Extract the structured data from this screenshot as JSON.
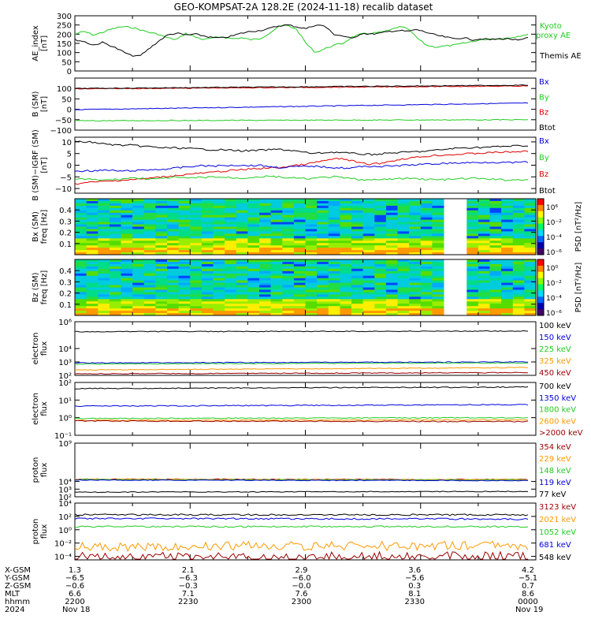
{
  "title": "GEO-KOMPSAT-2A 128.2E (2024-11-18) recalib dataset",
  "colors": {
    "black": "#000000",
    "red": "#e00000",
    "green": "#22cc22",
    "blue": "#0000dd",
    "orange": "#ff9900",
    "darkred": "#990000",
    "bright_green": "#22dd22"
  },
  "chart_data": [
    {
      "type": "line",
      "id": "ae",
      "ylabel": [
        "AE_index",
        "[nT]"
      ],
      "ylim": [
        0,
        300
      ],
      "yticks": [
        "0",
        "50",
        "100",
        "150",
        "200",
        "250",
        "300"
      ],
      "legend": [
        "Kyoto",
        "proxy AE",
        "Themis AE"
      ],
      "series": [
        {
          "name": "Kyoto proxy AE",
          "color": "green",
          "values": [
            200,
            215,
            195,
            210,
            228,
            240,
            238,
            225,
            210,
            200,
            180,
            170,
            205,
            185,
            170,
            180,
            185,
            175,
            180,
            170,
            175,
            205,
            240,
            248,
            225,
            150,
            100,
            120,
            140,
            150,
            185,
            200,
            205,
            210,
            220,
            240,
            230,
            180,
            140,
            130,
            135,
            140,
            150,
            160,
            170,
            175,
            175,
            180,
            190,
            200
          ]
        },
        {
          "name": "Themis AE",
          "color": "black",
          "values": [
            170,
            160,
            140,
            155,
            135,
            110,
            85,
            80,
            120,
            160,
            195,
            205,
            195,
            200,
            190,
            180,
            180,
            190,
            205,
            215,
            220,
            230,
            245,
            250,
            240,
            230,
            250,
            245,
            200,
            190,
            175,
            205,
            200,
            205,
            215,
            220,
            215,
            225,
            210,
            195,
            185,
            175,
            180,
            170,
            175,
            170,
            175,
            175,
            165,
            180
          ]
        }
      ]
    },
    {
      "type": "line",
      "id": "b_sm",
      "ylabel": [
        "B (SM)",
        "[nT]"
      ],
      "ylim": [
        -100,
        150
      ],
      "yticks": [
        "−100",
        "−50",
        "0",
        "50",
        "100"
      ],
      "legend": [
        "Bx",
        "By",
        "Bz",
        "Btot"
      ],
      "series": [
        {
          "name": "Bx",
          "color": "blue",
          "values": [
            -2,
            30
          ]
        },
        {
          "name": "By",
          "color": "green",
          "values": [
            -55,
            -50
          ]
        },
        {
          "name": "Bz",
          "color": "red",
          "values": [
            98,
            112
          ]
        },
        {
          "name": "Btot",
          "color": "black",
          "values": [
            100,
            116
          ]
        }
      ]
    },
    {
      "type": "line",
      "id": "b_igrf",
      "ylabel": [
        "B (SM)−IGRF (SM)",
        "[nT]"
      ],
      "ylim": [
        -12,
        12
      ],
      "yticks": [
        "−10",
        "−5",
        "0",
        "5",
        "10"
      ],
      "legend": [
        "Bx",
        "By",
        "Bz",
        "Btot"
      ],
      "series": [
        {
          "name": "Btot",
          "color": "black",
          "values": [
            10,
            10,
            9.8,
            9.2,
            8.8,
            8.5,
            8.6,
            8.2,
            8,
            7.6,
            7.4,
            7.4,
            7.2,
            7,
            6.8,
            6.6,
            6.6,
            6.4,
            6.2,
            6.2,
            6.4,
            6.6,
            6.8,
            6.5,
            6,
            5.4,
            5,
            5.4,
            5.6,
            5.4,
            5,
            4.8,
            4.6,
            4.8,
            5.2,
            5.4,
            5.6,
            5.8,
            6,
            6.4,
            6.8,
            7.2,
            7.4,
            7.6,
            7.6,
            7.8,
            8,
            8.2,
            8.3,
            8.4
          ]
        },
        {
          "name": "Bz",
          "color": "red",
          "values": [
            -8,
            -7.6,
            -7.2,
            -7,
            -6.8,
            -6.4,
            -6.2,
            -6,
            -5.6,
            -5.2,
            -4.8,
            -4.4,
            -4,
            -3.6,
            -3.4,
            -3,
            -2.6,
            -2.2,
            -2,
            -1.6,
            -1.4,
            -1.2,
            -1,
            -0.6,
            0,
            0.4,
            1.2,
            2,
            2.6,
            2.8,
            1.8,
            0.8,
            0.4,
            0.8,
            1.6,
            2.4,
            3,
            3.4,
            3.8,
            4.2,
            4.4,
            4.6,
            4.8,
            5,
            5.2,
            5.4,
            5.6,
            5.6,
            5.8,
            6
          ]
        },
        {
          "name": "Bx",
          "color": "blue",
          "values": [
            -2.6,
            -2.4,
            -2.4,
            -2.2,
            -2.2,
            -2.6,
            -2.4,
            -2.2,
            -2,
            -1.8,
            -1.6,
            -1.2,
            -0.8,
            -0.4,
            -0.2,
            -0.4,
            -0.2,
            0,
            0,
            -0.2,
            0,
            -0.6,
            -1,
            -0.8,
            -0.6,
            -0.6,
            -0.4,
            -0.8,
            -1,
            -1.2,
            -1.2,
            -0.6,
            -0.4,
            -0.6,
            -0.4,
            -0.2,
            0,
            0.2,
            0.4,
            0.6,
            0.8,
            0.9,
            1,
            1.1,
            1.2,
            1.3,
            1.2,
            1.1,
            1.2,
            1.3
          ]
        },
        {
          "name": "By",
          "color": "green",
          "values": [
            -5.8,
            -6,
            -6.2,
            -6.4,
            -6.2,
            -6,
            -5.4,
            -5.6,
            -5.8,
            -6,
            -5.4,
            -5.2,
            -5.6,
            -5.4,
            -5.2,
            -5,
            -5.2,
            -5.4,
            -5.6,
            -5.2,
            -5,
            -4.8,
            -5,
            -5.4,
            -5.6,
            -5.8,
            -5.6,
            -5.2,
            -5,
            -5.4,
            -5.8,
            -6.2,
            -6.4,
            -6.2,
            -6,
            -5.8,
            -5.6,
            -5.8,
            -6,
            -6.2,
            -6.2,
            -6,
            -5.8,
            -5.6,
            -5.8,
            -6,
            -6.2,
            -6.4,
            -6.2,
            -6
          ]
        }
      ]
    },
    {
      "type": "heatmap",
      "id": "bx_spec",
      "ylabel": [
        "Bx (SM)",
        "freq [Hz]"
      ],
      "ylim": [
        0,
        0.5
      ],
      "yticks": [
        "0.1",
        "0.2",
        "0.3",
        "0.4"
      ],
      "colorbar": {
        "label": "PSD [nT²/Hz]",
        "ticks": [
          "10⁶",
          "10⁻²",
          "10⁻⁴",
          "10⁻⁶"
        ]
      },
      "gap": [
        0.818,
        0.846
      ]
    },
    {
      "type": "heatmap",
      "id": "bz_spec",
      "ylabel": [
        "Bz (SM)",
        "freq [Hz]"
      ],
      "ylim": [
        0,
        0.5
      ],
      "yticks": [
        "0.1",
        "0.2",
        "0.3",
        "0.4"
      ],
      "colorbar": {
        "label": "PSD [nT²/Hz]",
        "ticks": [
          "10⁰",
          "10⁻²",
          "10⁻⁴",
          "10⁻⁶"
        ]
      },
      "gap": [
        0.818,
        0.846
      ]
    },
    {
      "type": "line",
      "id": "e_low",
      "ylabel": [
        "electron",
        "flux"
      ],
      "log": true,
      "ylim": [
        100,
        1000000
      ],
      "yticks": [
        "10⁶",
        "10⁴",
        "10³",
        "10²"
      ],
      "legend": [
        "100 keV",
        "150 keV",
        "225 keV",
        "325 keV",
        "450 keV"
      ],
      "series": [
        {
          "name": "100 keV",
          "color": "black",
          "values": [
            180000,
            200000
          ]
        },
        {
          "name": "150 keV",
          "color": "blue",
          "values": [
            850,
            1000
          ]
        },
        {
          "name": "225 keV",
          "color": "green",
          "values": [
            700,
            850
          ]
        },
        {
          "name": "325 keV",
          "color": "orange",
          "values": [
            250,
            380
          ]
        },
        {
          "name": "450 keV",
          "color": "darkred",
          "values": [
            130,
            160
          ]
        }
      ]
    },
    {
      "type": "line",
      "id": "e_high",
      "ylabel": [
        "electron",
        "flux"
      ],
      "log": true,
      "ylim": [
        0.1,
        100
      ],
      "yticks": [
        "10²",
        "10¹",
        "10⁰",
        "10⁻¹"
      ],
      "legend": [
        "700 keV",
        "1350 keV",
        "1800 keV",
        "2600 keV",
        ">2000 keV"
      ],
      "series": [
        {
          "name": "700 keV",
          "color": "black",
          "values": [
            45,
            55
          ]
        },
        {
          "name": "1350 keV",
          "color": "blue",
          "values": [
            4.5,
            5.5
          ]
        },
        {
          "name": "1800 keV",
          "color": "green",
          "values": [
            0.9,
            1.0
          ]
        },
        {
          "name": "2600 keV",
          "color": "orange",
          "values": [
            0.7,
            0.75
          ]
        },
        {
          "name": ">2000 keV",
          "color": "darkred",
          "values": [
            0.65,
            0.6
          ]
        }
      ]
    },
    {
      "type": "line",
      "id": "p_low",
      "ylabel": [
        "proton",
        "flux"
      ],
      "log": true,
      "ylim": [
        100,
        1000000000
      ],
      "yticks": [
        "10⁹",
        "10⁴",
        "10³",
        "10²"
      ],
      "legend": [
        "354 keV",
        "229 keV",
        "148 keV",
        "119 keV",
        "77 keV"
      ],
      "series": [
        {
          "name": "354 keV",
          "color": "darkred",
          "values": [
            20000,
            18000
          ]
        },
        {
          "name": "229 keV",
          "color": "orange",
          "values": [
            19000,
            17000
          ]
        },
        {
          "name": "148 keV",
          "color": "green",
          "values": [
            17000,
            15000
          ]
        },
        {
          "name": "119 keV",
          "color": "blue",
          "values": [
            15000,
            13000
          ]
        },
        {
          "name": "77 keV",
          "color": "black",
          "values": [
            400,
            500
          ]
        }
      ]
    },
    {
      "type": "line",
      "id": "p_high",
      "ylabel": [
        "proton",
        "flux"
      ],
      "log": true,
      "ylim": [
        3e-05,
        10000
      ],
      "yticks": [
        "10⁴",
        "10²",
        "10⁰",
        "10⁻²",
        "10⁻⁴"
      ],
      "legend": [
        "3123 keV",
        "2021 keV",
        "1052 keV",
        "681 keV",
        "548 keV"
      ],
      "series": [
        {
          "name": "3123 keV",
          "color": "darkred",
          "values": [
            8e-05,
            0.0001
          ]
        },
        {
          "name": "2021 keV",
          "color": "orange",
          "values": [
            0.003,
            0.004
          ]
        },
        {
          "name": "1052 keV",
          "color": "green",
          "values": [
            3,
            3
          ]
        },
        {
          "name": "681 keV",
          "color": "blue",
          "values": [
            50,
            40
          ]
        },
        {
          "name": "548 keV",
          "color": "black",
          "values": [
            180,
            170
          ]
        }
      ]
    }
  ],
  "ephemeris": {
    "row_labels": [
      "X-GSM",
      "Y-GSM",
      "Z-GSM",
      "MLT",
      "hhmm",
      "2024"
    ],
    "columns": [
      [
        "1.3",
        "−6.5",
        "−0.6",
        "6.6",
        "2200",
        "Nov 18"
      ],
      [
        "2.1",
        "−6.3",
        "−0.3",
        "7.1",
        "2230",
        ""
      ],
      [
        "2.9",
        "−6.0",
        "−0.0",
        "7.6",
        "2300",
        ""
      ],
      [
        "3.6",
        "−5.6",
        "0.3",
        "8.1",
        "2330",
        ""
      ],
      [
        "4.2",
        "−5.1",
        "0.7",
        "8.6",
        "0000",
        "Nov 19"
      ]
    ]
  }
}
